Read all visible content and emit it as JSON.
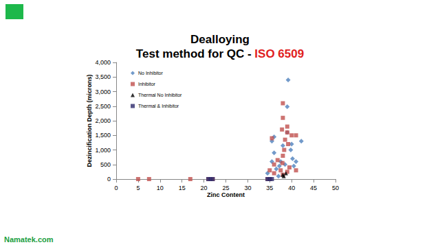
{
  "chart_data": {
    "type": "scatter",
    "title": "Dealloying",
    "subtitle": "Test method for QC - ISO 6509",
    "annotations": [
      "Namatek.com"
    ],
    "x_label": "Zinc Content",
    "y_label": "Dezincification Depth (microns)",
    "xlim": [
      0,
      50
    ],
    "xticks": [
      0,
      5,
      10,
      15,
      20,
      25,
      30,
      35,
      40,
      45,
      50
    ],
    "ylim": [
      0,
      4000
    ],
    "yticks": [
      0,
      500,
      1000,
      1500,
      2000,
      2500,
      3000,
      3500,
      4000
    ],
    "grid": false,
    "legend": "top-left",
    "series": [
      {
        "name": "No Inhibitor",
        "color": "#4f81bd",
        "marker": "diamond",
        "x": [
          39.2,
          39.0,
          42.2,
          40.0,
          35.5,
          36.0,
          37.5,
          38.0,
          40.5,
          40.2,
          41.0,
          36.5,
          34.5,
          37.0,
          35.5,
          39.0,
          38.5,
          36.0,
          37.2,
          39.8
        ],
        "values": [
          3400,
          2480,
          1300,
          1200,
          1300,
          1450,
          600,
          1150,
          450,
          700,
          600,
          350,
          200,
          100,
          600,
          1600,
          500,
          900,
          450,
          1000
        ]
      },
      {
        "name": "Inhibitor",
        "color": "#c0504d",
        "marker": "square",
        "x": [
          5.0,
          7.5,
          16.9,
          21.0,
          22.0,
          38.0,
          38.0,
          39.0,
          39.0,
          37.8,
          41.0,
          40.0,
          38.5,
          35.5,
          36.0,
          38.0,
          39.5,
          37.5,
          35.0,
          34.5,
          35.0,
          36.0,
          38.0,
          39.0,
          41.0,
          38.3,
          37.9,
          36.8,
          39.2
        ],
        "values": [
          0,
          0,
          0,
          0,
          0,
          2600,
          2100,
          1800,
          1600,
          1700,
          1500,
          1500,
          1350,
          1400,
          500,
          800,
          400,
          300,
          300,
          0,
          0,
          200,
          150,
          250,
          300,
          1000,
          550,
          650,
          1200
        ]
      },
      {
        "name": "Thermal No Inhibitor",
        "color": "#000000",
        "marker": "triangle",
        "x": [
          38.2,
          38.7,
          38.0
        ],
        "values": [
          100,
          200,
          150
        ]
      },
      {
        "name": "Thermal & Inhibitor",
        "color": "#2e2a6b",
        "marker": "square",
        "x": [
          21.0,
          21.5,
          22.0,
          34.5,
          35.0,
          35.5
        ],
        "values": [
          0,
          0,
          0,
          0,
          0,
          0
        ]
      }
    ]
  }
}
